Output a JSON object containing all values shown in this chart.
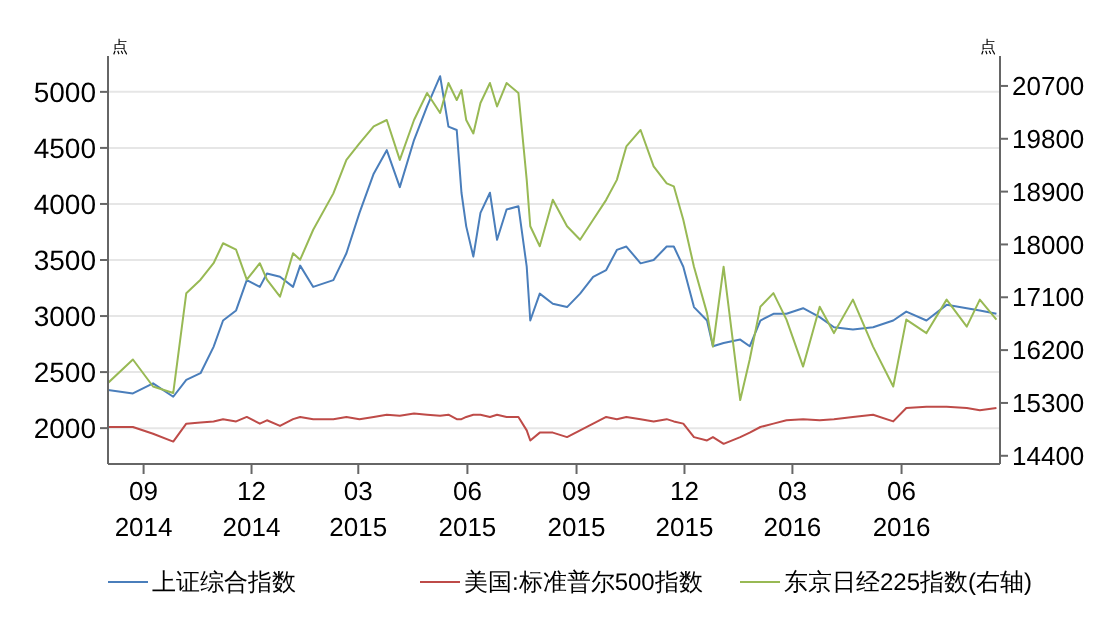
{
  "chart_data": {
    "type": "line",
    "ylabel": "点",
    "y2label": "点",
    "x": [
      "2014-08-02",
      "2014-08-23",
      "2014-09-09",
      "2014-09-26",
      "2014-10-07",
      "2014-10-19",
      "2014-10-30",
      "2014-11-07",
      "2014-11-18",
      "2014-11-27",
      "2014-12-08",
      "2014-12-14",
      "2014-12-25",
      "2015-01-05",
      "2015-01-11",
      "2015-01-22",
      "2015-02-08",
      "2015-02-19",
      "2015-03-02",
      "2015-03-14",
      "2015-03-25",
      "2015-04-05",
      "2015-04-17",
      "2015-04-28",
      "2015-05-09",
      "2015-05-16",
      "2015-05-23",
      "2015-05-27",
      "2015-05-31",
      "2015-06-06",
      "2015-06-12",
      "2015-06-20",
      "2015-06-26",
      "2015-07-04",
      "2015-07-14",
      "2015-07-21",
      "2015-07-24",
      "2015-08-01",
      "2015-08-12",
      "2015-08-24",
      "2015-09-04",
      "2015-09-15",
      "2015-09-26",
      "2015-10-05",
      "2015-10-13",
      "2015-10-25",
      "2015-11-05",
      "2015-11-16",
      "2015-11-22",
      "2015-11-30",
      "2015-12-09",
      "2015-12-20",
      "2015-12-25",
      "2016-01-03",
      "2016-01-17",
      "2016-01-25",
      "2016-02-03",
      "2016-02-14",
      "2016-02-25",
      "2016-03-10",
      "2016-03-24",
      "2016-04-05",
      "2016-04-21",
      "2016-05-08",
      "2016-05-25",
      "2016-06-05",
      "2016-06-22",
      "2016-07-09",
      "2016-07-26",
      "2016-08-06",
      "2016-08-20"
    ],
    "series": [
      {
        "name": "上证综合指数",
        "color": "#4a7ebb",
        "values": [
          2340,
          2310,
          2400,
          2280,
          2430,
          2490,
          2725,
          2960,
          3050,
          3320,
          3260,
          3380,
          3350,
          3260,
          3450,
          3260,
          3320,
          3560,
          3920,
          4270,
          4480,
          4150,
          4570,
          4870,
          5140,
          4690,
          4660,
          4100,
          3800,
          3530,
          3920,
          4100,
          3680,
          3950,
          3980,
          3440,
          2960,
          3200,
          3110,
          3080,
          3200,
          3350,
          3410,
          3590,
          3620,
          3470,
          3500,
          3620,
          3620,
          3440,
          3080,
          2960,
          2730,
          2760,
          2790,
          2730,
          2960,
          3020,
          3020,
          3070,
          2990,
          2900,
          2880,
          2900,
          2960,
          3040,
          2960,
          3100,
          3070,
          3050,
          3020
        ]
      },
      {
        "name": "美国:标准普尔500指数",
        "color": "#be4b48",
        "values": [
          2010,
          2010,
          1950,
          1880,
          2040,
          2050,
          2060,
          2080,
          2060,
          2100,
          2040,
          2070,
          2020,
          2080,
          2100,
          2080,
          2080,
          2100,
          2080,
          2100,
          2120,
          2110,
          2130,
          2120,
          2110,
          2120,
          2080,
          2080,
          2100,
          2120,
          2120,
          2100,
          2120,
          2100,
          2100,
          1980,
          1890,
          1960,
          1960,
          1920,
          1980,
          2040,
          2100,
          2080,
          2100,
          2080,
          2060,
          2080,
          2060,
          2040,
          1920,
          1890,
          1920,
          1860,
          1920,
          1960,
          2010,
          2040,
          2070,
          2080,
          2070,
          2080,
          2100,
          2120,
          2060,
          2180,
          2190,
          2190,
          2180,
          2160,
          2180
        ]
      },
      {
        "name": "东京日经225指数(右轴)",
        "color": "#98b954",
        "axis": "y2",
        "values": [
          15640,
          16040,
          15580,
          15470,
          17170,
          17400,
          17680,
          18020,
          17910,
          17400,
          17680,
          17400,
          17110,
          17850,
          17740,
          18250,
          18870,
          19440,
          19720,
          20010,
          20120,
          19440,
          20120,
          20580,
          20240,
          20750,
          20460,
          20630,
          20120,
          19890,
          20410,
          20750,
          20350,
          20750,
          20580,
          19100,
          18310,
          17970,
          18760,
          18310,
          18080,
          18420,
          18760,
          19100,
          19670,
          19950,
          19330,
          19040,
          18990,
          18420,
          17620,
          16830,
          16260,
          17620,
          15350,
          16040,
          16940,
          17170,
          16720,
          15920,
          16940,
          16490,
          17060,
          16260,
          15580,
          16720,
          16490,
          17060,
          16600,
          17060,
          16720
        ]
      }
    ],
    "xlim": [
      "2014-08-02",
      "2016-08-23"
    ],
    "xticks": [
      {
        "value": "2014-09-01",
        "label": "09\n2014"
      },
      {
        "value": "2014-12-01",
        "label": "12\n2014"
      },
      {
        "value": "2015-03-01",
        "label": "03\n2015"
      },
      {
        "value": "2015-06-01",
        "label": "06\n2015"
      },
      {
        "value": "2015-09-01",
        "label": "09\n2015"
      },
      {
        "value": "2015-12-01",
        "label": "12\n2015"
      },
      {
        "value": "2016-03-01",
        "label": "03\n2016"
      },
      {
        "value": "2016-06-01",
        "label": "06\n2016"
      }
    ],
    "ylim": [
      1680,
      5320
    ],
    "yticks": [
      2000,
      2500,
      3000,
      3500,
      4000,
      4500,
      5000
    ],
    "y2lim": [
      14260,
      21210
    ],
    "y2ticks": [
      14400,
      15300,
      16200,
      17100,
      18000,
      18900,
      19800,
      20700
    ],
    "grid": "y",
    "legend": "bottom"
  }
}
